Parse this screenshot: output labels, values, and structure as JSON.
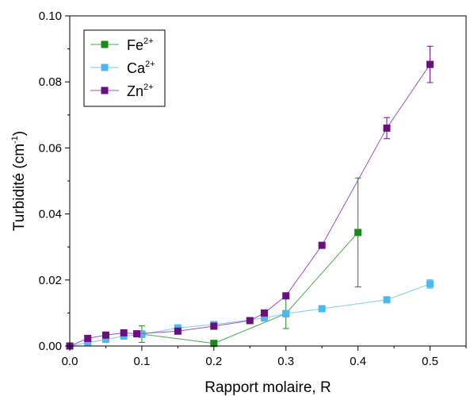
{
  "chart_data": {
    "type": "line",
    "xlabel": "Rapport molaire, R",
    "ylabel_main": "Turbidité (cm",
    "ylabel_sup": "-1",
    "ylabel_end": ")",
    "xlim": [
      0.0,
      0.55
    ],
    "ylim": [
      0.0,
      0.1
    ],
    "xticks": [
      0.0,
      0.1,
      0.2,
      0.3,
      0.4,
      0.5
    ],
    "xtick_labels": [
      "0.0",
      "0.1",
      "0.2",
      "0.3",
      "0.4",
      "0.5"
    ],
    "yticks": [
      0.0,
      0.02,
      0.04,
      0.06,
      0.08,
      0.1
    ],
    "ytick_labels": [
      "0.00",
      "0.02",
      "0.04",
      "0.06",
      "0.08",
      "0.10"
    ],
    "legend_position": "top-left",
    "series": [
      {
        "name": "Fe",
        "name_sup": "2+",
        "color": "#1a8a1a",
        "line_color": "#4aa84a",
        "x": [
          0.1,
          0.2,
          0.3,
          0.4
        ],
        "y": [
          0.0036,
          0.0008,
          0.0098,
          0.0344
        ],
        "err": [
          0.0025,
          0.0,
          0.0045,
          0.0165
        ]
      },
      {
        "name": "Ca",
        "name_sup": "2+",
        "color": "#4db8f0",
        "line_color": "#7dcaf4",
        "x": [
          0.0,
          0.025,
          0.05,
          0.075,
          0.1,
          0.15,
          0.2,
          0.27,
          0.3,
          0.35,
          0.44,
          0.5
        ],
        "y": [
          0.0,
          0.001,
          0.002,
          0.003,
          0.0035,
          0.0055,
          0.0065,
          0.0085,
          0.0098,
          0.0113,
          0.014,
          0.0188
        ],
        "err": [
          0,
          0,
          0,
          0,
          0,
          0,
          0,
          0,
          0,
          0,
          0,
          0.0013
        ]
      },
      {
        "name": "Zn",
        "name_sup": "2+",
        "color": "#6a0f80",
        "line_color": "#9b4fd0",
        "x": [
          0.0,
          0.025,
          0.05,
          0.075,
          0.093,
          0.15,
          0.2,
          0.25,
          0.27,
          0.3,
          0.35,
          0.44,
          0.5
        ],
        "y": [
          0.0,
          0.0023,
          0.0033,
          0.004,
          0.0037,
          0.0045,
          0.006,
          0.0077,
          0.01,
          0.0152,
          0.0305,
          0.066,
          0.0853
        ],
        "err": [
          0,
          0,
          0,
          0,
          0,
          0,
          0,
          0,
          0,
          0,
          0,
          0.0032,
          0.0055
        ]
      }
    ]
  }
}
